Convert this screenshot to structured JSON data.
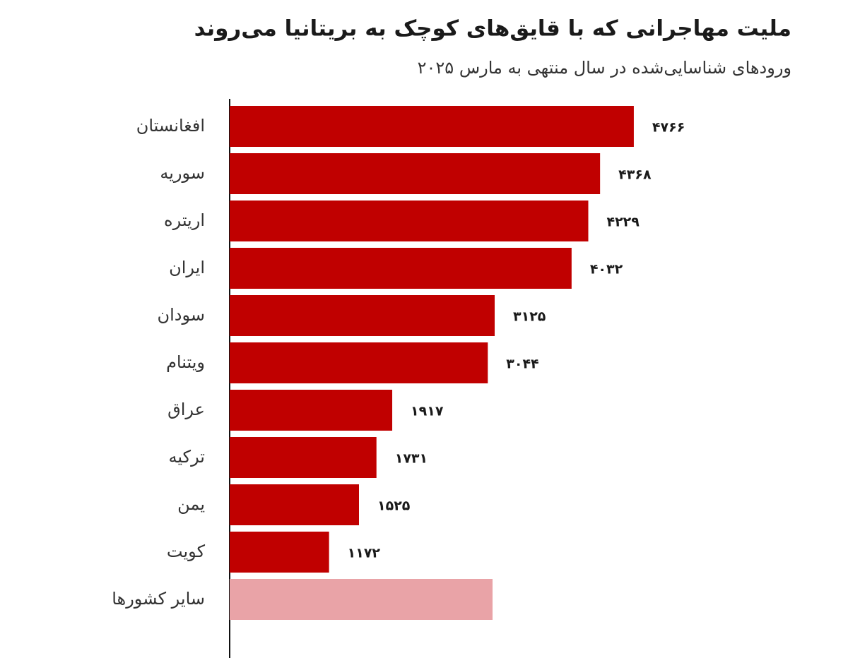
{
  "chart_data": {
    "type": "bar",
    "orientation": "horizontal",
    "title": "ملیت مهاجرانی که با قایق‌های کوچک به بریتانیا می‌روند",
    "subtitle": "ورودهای شناسایی‌شده در سال منتهی به مارس ۲۰۲۵",
    "categories": [
      "افغانستان",
      "سوریه",
      "اریتره",
      "ایران",
      "سودان",
      "ویتنام",
      "عراق",
      "ترکیه",
      "یمن",
      "کویت",
      "سایر کشورها"
    ],
    "values": [
      4766,
      4368,
      4229,
      4032,
      3125,
      3044,
      1917,
      1731,
      1525,
      1172,
      3100
    ],
    "value_labels": [
      "۴۷۶۶",
      "۴۳۶۸",
      "۴۲۲۹",
      "۴۰۳۲",
      "۳۱۲۵",
      "۳۰۴۴",
      "۱۹۱۷",
      "۱۷۳۱",
      "۱۵۲۵",
      "۱۱۷۲",
      null
    ],
    "colors": [
      "#c00000",
      "#c00000",
      "#c00000",
      "#c00000",
      "#c00000",
      "#c00000",
      "#c00000",
      "#c00000",
      "#c00000",
      "#c00000",
      "#e9a3a7"
    ],
    "xlim": [
      0,
      6500
    ]
  }
}
